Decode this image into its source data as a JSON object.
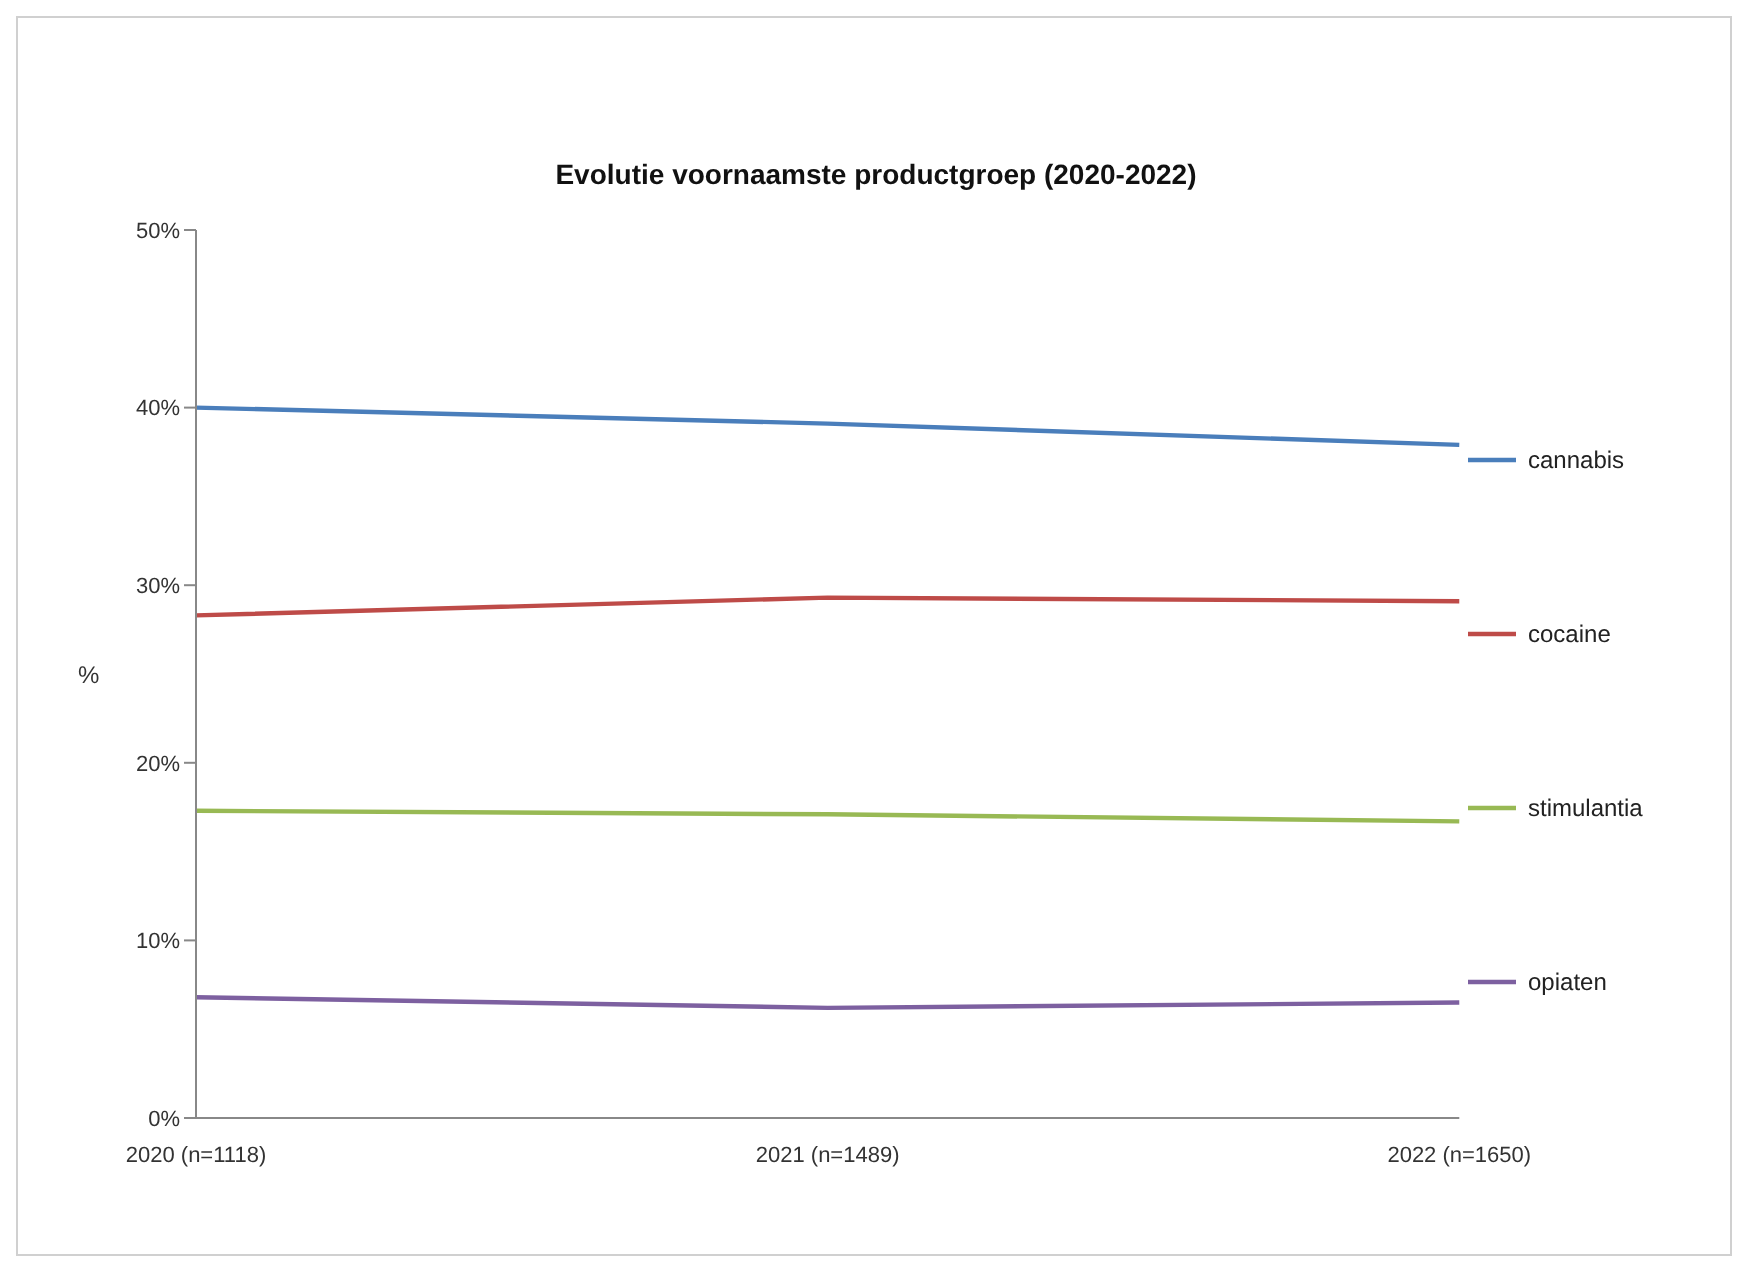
{
  "chart_data": {
    "type": "line",
    "title": "Evolutie voornaamste productgroep (2020-2022)",
    "ylabel": "%",
    "categories": [
      "2020 (n=1118)",
      "2021 (n=1489)",
      "2022 (n=1650)"
    ],
    "series": [
      {
        "name": "cannabis",
        "color": "#4a7ebb",
        "values": [
          40.0,
          39.1,
          37.9
        ]
      },
      {
        "name": "cocaine",
        "color": "#be4b48",
        "values": [
          28.3,
          29.3,
          29.1
        ]
      },
      {
        "name": "stimulantia",
        "color": "#98b954",
        "values": [
          17.3,
          17.1,
          16.7
        ]
      },
      {
        "name": "opiaten",
        "color": "#7d60a0",
        "values": [
          6.8,
          6.2,
          6.5
        ]
      }
    ],
    "ylim": [
      0,
      50
    ],
    "yticks": [
      {
        "value": 0,
        "label": "0%"
      },
      {
        "value": 10,
        "label": "10%"
      },
      {
        "value": 20,
        "label": "20%"
      },
      {
        "value": 30,
        "label": "30%"
      },
      {
        "value": 40,
        "label": "40%"
      },
      {
        "value": 50,
        "label": "50%"
      }
    ],
    "grid": false,
    "legend": "right",
    "marker": "none",
    "line_style": "solid"
  }
}
